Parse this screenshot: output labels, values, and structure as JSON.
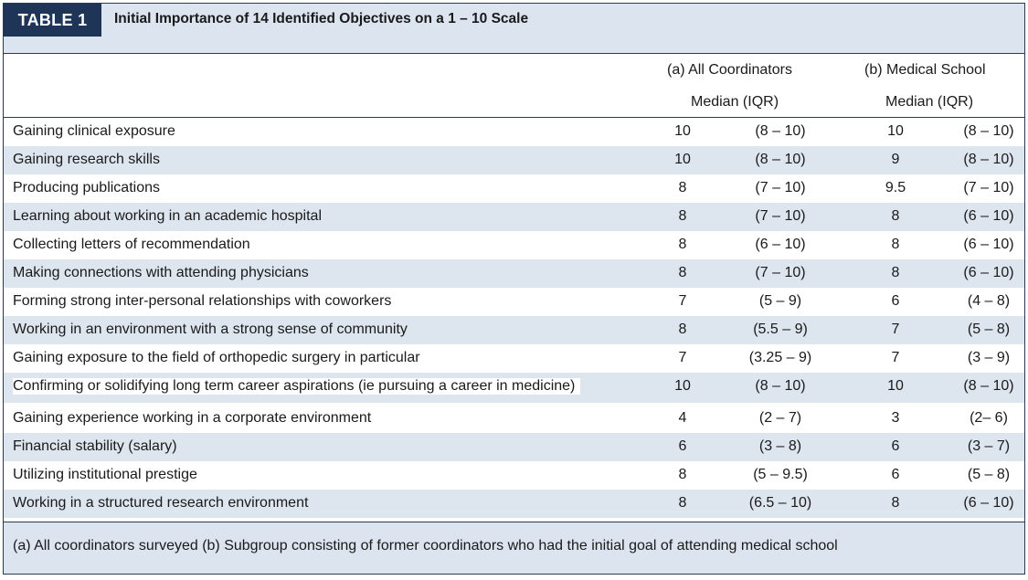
{
  "header": {
    "tag": "TABLE 1",
    "title": "Initial Importance of 14 Identified Objectives on a 1 – 10 Scale"
  },
  "columns": {
    "group_a": "(a) All Coordinators",
    "group_a_sub": "Median (IQR)",
    "group_b": "(b) Medical School",
    "group_b_sub": "Median (IQR)"
  },
  "rows": [
    {
      "label": "Gaining clinical exposure",
      "a_median": "10",
      "a_iqr": "(8 – 10)",
      "b_median": "10",
      "b_iqr": "(8 – 10)"
    },
    {
      "label": "Gaining research skills",
      "a_median": "10",
      "a_iqr": "(8 – 10)",
      "b_median": "9",
      "b_iqr": "(8 – 10)"
    },
    {
      "label": "Producing publications",
      "a_median": "8",
      "a_iqr": "(7 – 10)",
      "b_median": "9.5",
      "b_iqr": "(7 – 10)"
    },
    {
      "label": "Learning about working in an academic hospital",
      "a_median": "8",
      "a_iqr": "(7 – 10)",
      "b_median": "8",
      "b_iqr": "(6 – 10)"
    },
    {
      "label": "Collecting letters of recommendation",
      "a_median": "8",
      "a_iqr": "(6 – 10)",
      "b_median": "8",
      "b_iqr": "(6 – 10)"
    },
    {
      "label": "Making connections with attending physicians",
      "a_median": "8",
      "a_iqr": "(7 – 10)",
      "b_median": "8",
      "b_iqr": "(6 – 10)"
    },
    {
      "label": "Forming strong inter-personal relationships with coworkers",
      "a_median": "7",
      "a_iqr": "(5 – 9)",
      "b_median": "6",
      "b_iqr": "(4 – 8)"
    },
    {
      "label": "Working in an environment with a strong sense of community",
      "a_median": "8",
      "a_iqr": "(5.5 – 9)",
      "b_median": "7",
      "b_iqr": "(5 – 8)"
    },
    {
      "label": "Gaining exposure to the field of orthopedic surgery in particular",
      "a_median": "7",
      "a_iqr": "(3.25 – 9)",
      "b_median": "7",
      "b_iqr": "(3 – 9)"
    },
    {
      "label": "Confirming or solidifying long term career aspirations (ie pursuing a career in medicine)",
      "a_median": "10",
      "a_iqr": "(8 – 10)",
      "b_median": "10",
      "b_iqr": "(8 – 10)"
    },
    {
      "label": "Gaining experience working in a corporate environment",
      "a_median": "4",
      "a_iqr": "(2 – 7)",
      "b_median": "3",
      "b_iqr": "(2– 6)"
    },
    {
      "label": "Financial stability (salary)",
      "a_median": "6",
      "a_iqr": "(3 – 8)",
      "b_median": "6",
      "b_iqr": "(3 – 7)"
    },
    {
      "label": "Utilizing institutional prestige",
      "a_median": "8",
      "a_iqr": "(5 – 9.5)",
      "b_median": "6",
      "b_iqr": "(5 – 8)"
    },
    {
      "label": "Working in a structured research environment",
      "a_median": "8",
      "a_iqr": "(6.5 – 10)",
      "b_median": "8",
      "b_iqr": "(6 – 10)"
    }
  ],
  "footer": {
    "note": "(a) All coordinators surveyed (b) Subgroup consisting of former coordinators who had the initial goal of attending medical school"
  }
}
